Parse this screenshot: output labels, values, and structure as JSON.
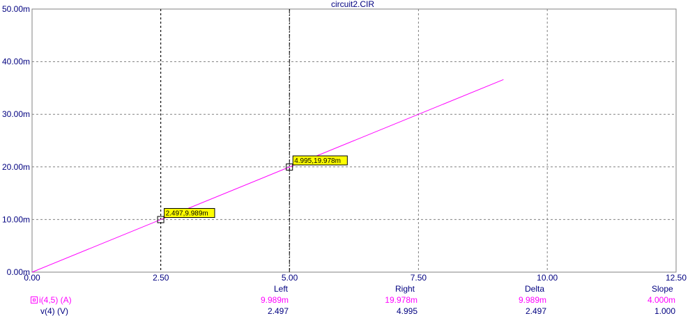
{
  "chart_data": {
    "type": "line",
    "title": "circuit2.CIR",
    "xlim": [
      0,
      12.5
    ],
    "ylim": [
      0,
      0.05
    ],
    "x_ticks": [
      "0.00",
      "2.50",
      "5.00",
      "7.50",
      "10.00",
      "12.50"
    ],
    "x_tick_values": [
      0,
      2.5,
      5,
      7.5,
      10,
      12.5
    ],
    "y_ticks": [
      "0.00m",
      "10.00m",
      "20.00m",
      "30.00m",
      "40.00m",
      "50.00m"
    ],
    "y_tick_values": [
      0,
      0.01,
      0.02,
      0.03,
      0.04,
      0.05
    ],
    "grid": true,
    "series": [
      {
        "name": "i(4,5) (A)",
        "color": "#ff00ff",
        "x": [
          0,
          9.15
        ],
        "y": [
          0,
          0.0366
        ]
      }
    ],
    "cursors": [
      {
        "x": 2.497,
        "y": 0.009989,
        "label": "2.497,9.989m"
      },
      {
        "x": 4.995,
        "y": 0.019978,
        "label": "4.995,19.978m"
      }
    ]
  },
  "readout": {
    "headers": {
      "left": "Left",
      "right": "Right",
      "delta": "Delta",
      "slope": "Slope"
    },
    "rows": [
      {
        "name": "i(4,5) (A)",
        "left": "9.989m",
        "right": "19.978m",
        "delta": "9.989m",
        "slope": "4.000m"
      },
      {
        "name": "v(4) (V)",
        "left": "2.497",
        "right": "4.995",
        "delta": "2.497",
        "slope": "1.000"
      }
    ]
  }
}
